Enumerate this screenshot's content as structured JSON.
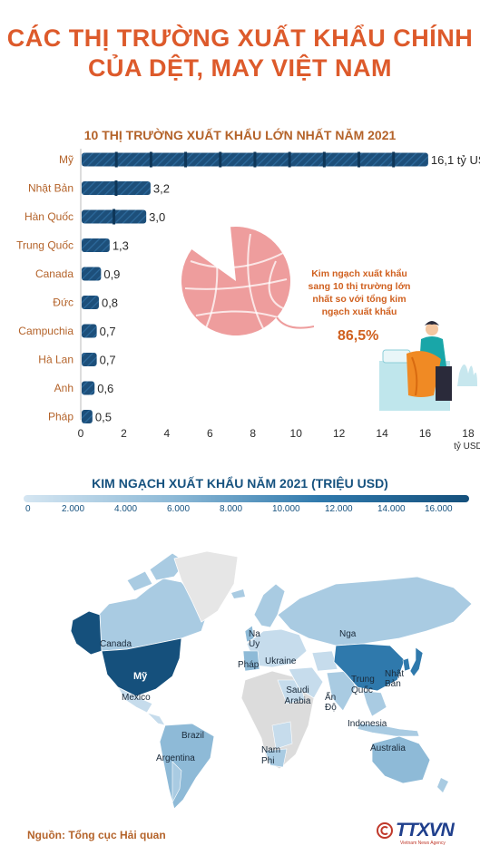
{
  "title": {
    "line1": "CÁC THỊ TRƯỜNG XUẤT KHẨU CHÍNH",
    "line2": "CỦA DỆT, MAY VIỆT NAM"
  },
  "colors": {
    "title": "#dd5a2b",
    "bar": "#1d4f7a",
    "label": "#b4632a",
    "ball": "#ee9d9d",
    "map_gray": "#dcdcdc"
  },
  "chart_data": [
    {
      "type": "bar",
      "orientation": "horizontal",
      "title": "10 THỊ TRƯỜNG XUẤT KHẨU LỚN NHẤT NĂM 2021",
      "categories": [
        "Mỹ",
        "Nhật Bản",
        "Hàn Quốc",
        "Trung Quốc",
        "Canada",
        "Đức",
        "Campuchia",
        "Hà Lan",
        "Anh",
        "Pháp"
      ],
      "values": [
        16.1,
        3.2,
        3.0,
        1.3,
        0.9,
        0.8,
        0.7,
        0.7,
        0.6,
        0.5
      ],
      "value_labels": [
        "16,1 tỷ USD",
        "3,2",
        "3,0",
        "1,3",
        "0,9",
        "0,8",
        "0,7",
        "0,7",
        "0,6",
        "0,5"
      ],
      "xticks": [
        0,
        2,
        4,
        6,
        8,
        10,
        12,
        14,
        16,
        18
      ],
      "xlim": [
        0,
        18
      ],
      "xunit": "tỷ USD",
      "grid": false,
      "legend": "none"
    },
    {
      "type": "pie",
      "slices": [
        86.5,
        13.5
      ],
      "annotation": "Kim ngạch xuất khẩu sang 10 thị trường lớn nhất so với tổng kim ngạch xuất khẩu",
      "value_label": "86,5%"
    },
    {
      "type": "heatmap",
      "title": "KIM NGẠCH XUẤT KHẨU NĂM 2021 (TRIỆU USD)",
      "scale_ticks": [
        "0",
        "2.000",
        "4.000",
        "6.000",
        "8.000",
        "10.000",
        "12.000",
        "14.000",
        "16.000"
      ],
      "scale_range": [
        0,
        16000
      ],
      "map_labels": [
        "Canada",
        "Mỹ",
        "Mexico",
        "Brazil",
        "Argentina",
        "Na Uy",
        "Pháp",
        "Ukraine",
        "Nga",
        "Saudi Arabia",
        "Ấn Độ",
        "Trung Quốc",
        "Nhật Bản",
        "Indonesia",
        "Australia",
        "Nam Phi"
      ]
    }
  ],
  "source": "Nguồn: Tổng cục Hải quan",
  "logo": {
    "text": "TTXVN",
    "sub": "Vietnam News Agency",
    "icon": "copyright-icon"
  }
}
